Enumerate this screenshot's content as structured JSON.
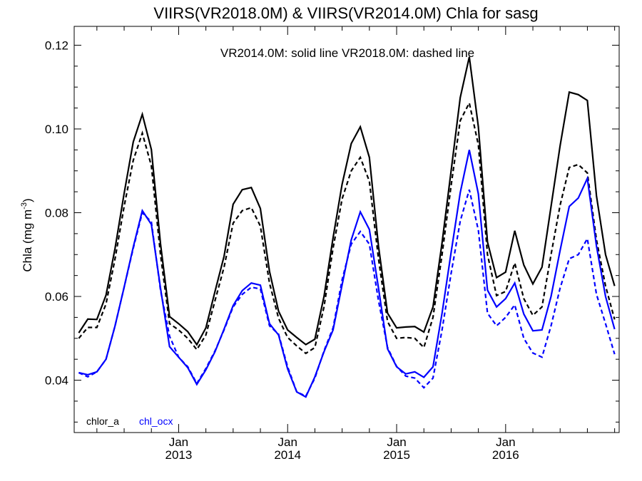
{
  "chart_data": {
    "type": "line",
    "title": "VIIRS(VR2018.0M) & VIIRS(VR2014.0M)  Chla for sasg",
    "annotation": "VR2014.0M: solid line   VR2018.0M: dashed line",
    "ylabel_main": "Chla (mg m",
    "ylabel_sup": "-3",
    "ylabel_close": ")",
    "ylim": [
      0.0275,
      0.1245
    ],
    "yticks": [
      0.04,
      0.06,
      0.08,
      0.1,
      0.12
    ],
    "ytick_labels": [
      "0.04",
      "0.06",
      "0.08",
      "0.10",
      "0.12"
    ],
    "xlim": [
      0,
      60
    ],
    "xticks": [
      {
        "month": 11.5,
        "line1": "Jan",
        "line2": "2013"
      },
      {
        "month": 23.5,
        "line1": "Jan",
        "line2": "2014"
      },
      {
        "month": 35.5,
        "line1": "Jan",
        "line2": "2015"
      },
      {
        "month": 47.5,
        "line1": "Jan",
        "line2": "2016"
      }
    ],
    "legend": [
      {
        "label": "chlor_a",
        "color": "#000000"
      },
      {
        "label": "chl_ocx",
        "color": "#0000ff"
      }
    ],
    "x_start_month_index": 0,
    "series": [
      {
        "product": "chlor_a",
        "version": "VR2014.0M",
        "dashed": false,
        "color": "#000000",
        "values": [
          0.0513,
          0.0546,
          0.0545,
          0.0603,
          0.0715,
          0.0846,
          0.0969,
          0.1035,
          0.0951,
          0.0726,
          0.0552,
          0.0535,
          0.0516,
          0.0485,
          0.0525,
          0.0612,
          0.0696,
          0.082,
          0.0855,
          0.086,
          0.081,
          0.066,
          0.0565,
          0.052,
          0.0502,
          0.0485,
          0.0498,
          0.06,
          0.074,
          0.0868,
          0.0965,
          0.1005,
          0.0932,
          0.072,
          0.056,
          0.0525,
          0.0527,
          0.0528,
          0.0515,
          0.0575,
          0.0728,
          0.09,
          0.1075,
          0.1172,
          0.1005,
          0.073,
          0.0645,
          0.0658,
          0.0757,
          0.0675,
          0.063,
          0.067,
          0.0815,
          0.096,
          0.1088,
          0.1082,
          0.1068,
          0.084,
          0.07,
          0.0625
        ]
      },
      {
        "product": "chlor_a",
        "version": "VR2018.0M",
        "dashed": true,
        "color": "#000000",
        "values": [
          0.05,
          0.0526,
          0.0526,
          0.0582,
          0.069,
          0.0815,
          0.0925,
          0.099,
          0.0912,
          0.07,
          0.0535,
          0.052,
          0.05,
          0.0473,
          0.0508,
          0.059,
          0.067,
          0.0775,
          0.0805,
          0.0812,
          0.0768,
          0.0632,
          0.0548,
          0.0502,
          0.0482,
          0.0464,
          0.0478,
          0.0575,
          0.0715,
          0.0833,
          0.09,
          0.0932,
          0.0875,
          0.069,
          0.054,
          0.05,
          0.0502,
          0.05,
          0.0478,
          0.055,
          0.07,
          0.0865,
          0.102,
          0.1062,
          0.0962,
          0.07,
          0.0602,
          0.0612,
          0.068,
          0.0595,
          0.0555,
          0.0575,
          0.07,
          0.0818,
          0.0908,
          0.0915,
          0.0895,
          0.0735,
          0.0625,
          0.0545
        ]
      },
      {
        "product": "chl_ocx",
        "version": "VR2014.0M",
        "dashed": false,
        "color": "#0000ff",
        "values": [
          0.0418,
          0.0413,
          0.042,
          0.045,
          0.053,
          0.0622,
          0.0718,
          0.0805,
          0.0772,
          0.062,
          0.048,
          0.0455,
          0.043,
          0.039,
          0.0425,
          0.0468,
          0.0522,
          0.0578,
          0.0614,
          0.0632,
          0.0627,
          0.0535,
          0.0508,
          0.0427,
          0.0372,
          0.036,
          0.0408,
          0.0468,
          0.052,
          0.0628,
          0.0735,
          0.0802,
          0.076,
          0.062,
          0.0475,
          0.0432,
          0.0415,
          0.042,
          0.0407,
          0.0432,
          0.056,
          0.0705,
          0.0848,
          0.095,
          0.0845,
          0.0615,
          0.0575,
          0.0595,
          0.0632,
          0.0558,
          0.0518,
          0.052,
          0.06,
          0.071,
          0.0815,
          0.0835,
          0.0882,
          0.072,
          0.06,
          0.0522
        ]
      },
      {
        "product": "chl_ocx",
        "version": "VR2018.0M",
        "dashed": true,
        "color": "#0000ff",
        "values": [
          0.0418,
          0.0408,
          0.042,
          0.045,
          0.053,
          0.0622,
          0.0715,
          0.08,
          0.0778,
          0.0615,
          0.0505,
          0.0455,
          0.0432,
          0.0392,
          0.0428,
          0.047,
          0.052,
          0.0575,
          0.0605,
          0.0622,
          0.0618,
          0.053,
          0.051,
          0.0432,
          0.0372,
          0.0362,
          0.0405,
          0.047,
          0.0525,
          0.064,
          0.0725,
          0.0755,
          0.0725,
          0.059,
          0.0478,
          0.0433,
          0.041,
          0.0405,
          0.0382,
          0.0405,
          0.052,
          0.0655,
          0.078,
          0.0855,
          0.0758,
          0.056,
          0.053,
          0.055,
          0.058,
          0.05,
          0.0465,
          0.0455,
          0.053,
          0.062,
          0.069,
          0.07,
          0.0738,
          0.0605,
          0.0535,
          0.0462
        ]
      }
    ]
  }
}
